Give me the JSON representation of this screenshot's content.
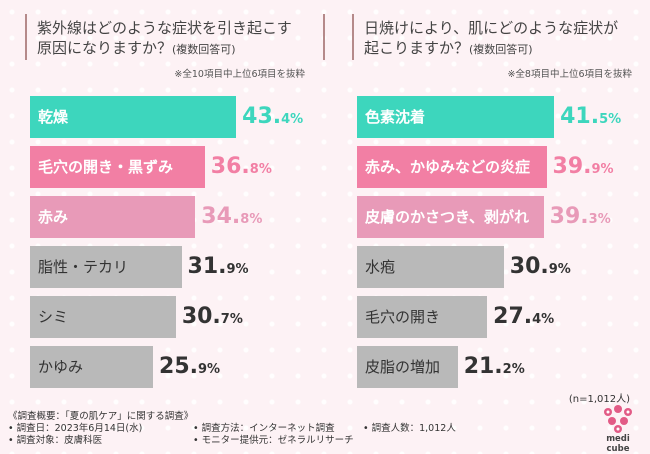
{
  "left": {
    "title_line1": "紫外線はどのような症状を引き起こす",
    "title_line2": "原因になりますか？",
    "title_note": "(複数回答可)",
    "subnote": "※全10項目中上位6項目を抜粋"
  },
  "right": {
    "title_line1": "日焼けにより、肌にどのような症状が",
    "title_line2": "起こりますか？",
    "title_note": "(複数回答可)",
    "subnote": "※全8項目中上位6項目を抜粋"
  },
  "chart_data": [
    {
      "type": "bar",
      "orientation": "horizontal",
      "categories": [
        "乾燥",
        "毛穴の開き・黒ずみ",
        "赤み",
        "脂性・テカリ",
        "シミ",
        "かゆみ"
      ],
      "values": [
        43.4,
        36.8,
        34.8,
        31.9,
        30.7,
        25.9
      ],
      "value_labels": [
        {
          "main": "43.",
          "dec": "4%"
        },
        {
          "main": "36.",
          "dec": "8%"
        },
        {
          "main": "34.",
          "dec": "8%"
        },
        {
          "main": "31.",
          "dec": "9%"
        },
        {
          "main": "30.",
          "dec": "7%"
        },
        {
          "main": "25.",
          "dec": "9%"
        }
      ],
      "colors": [
        "#3dd6bd",
        "#f27fa4",
        "#e89ab8",
        "#b9b9b9",
        "#b9b9b9",
        "#b9b9b9"
      ],
      "value_colors": [
        "#3dd6bd",
        "#f27fa4",
        "#e89ab8",
        "#333333",
        "#333333",
        "#333333"
      ],
      "title": "紫外線はどのような症状を引き起こす原因になりますか？(複数回答可)"
    },
    {
      "type": "bar",
      "orientation": "horizontal",
      "categories": [
        "色素沈着",
        "赤み、かゆみなどの炎症",
        "皮膚のかさつき、剥がれ",
        "水疱",
        "毛穴の開き",
        "皮脂の増加"
      ],
      "values": [
        41.5,
        39.9,
        39.3,
        30.9,
        27.4,
        21.2
      ],
      "value_labels": [
        {
          "main": "41.",
          "dec": "5%"
        },
        {
          "main": "39.",
          "dec": "9%"
        },
        {
          "main": "39.",
          "dec": "3%"
        },
        {
          "main": "30.",
          "dec": "9%"
        },
        {
          "main": "27.",
          "dec": "4%"
        },
        {
          "main": "21.",
          "dec": "2%"
        }
      ],
      "colors": [
        "#3dd6bd",
        "#f27fa4",
        "#e89ab8",
        "#b9b9b9",
        "#b9b9b9",
        "#b9b9b9"
      ],
      "value_colors": [
        "#3dd6bd",
        "#f27fa4",
        "#e89ab8",
        "#333333",
        "#333333",
        "#333333"
      ],
      "title": "日焼けにより、肌にどのような症状が起こりますか？(複数回答可)"
    }
  ],
  "n_note": "(n=1,012人)",
  "footer": {
    "overview": "《調査概要：「夏の肌ケア」に関する調査》",
    "date": "• 調査日：2023年6月14日(水)",
    "method": "• 調査方法：インターネット調査",
    "people": "• 調査人数：1,012人",
    "target": "• 調査対象：皮膚科医",
    "monitor": "• モニター提供元：ゼネラルリサーチ"
  },
  "logo": {
    "text": "medi cube",
    "color": "#e25b86"
  }
}
